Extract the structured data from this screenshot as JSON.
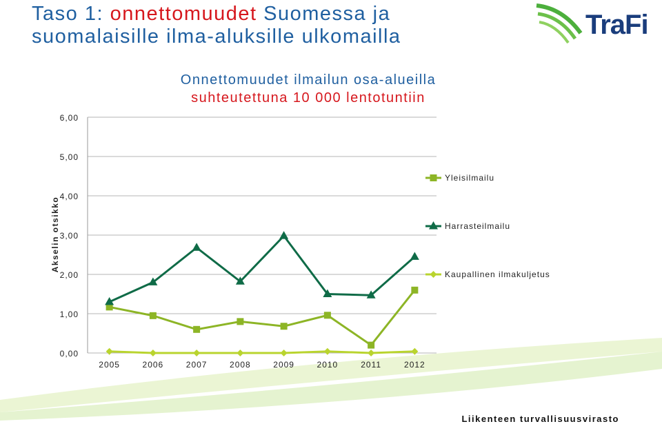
{
  "slide": {
    "title_prefix": "Taso 1: ",
    "title_accent": "onnettomuudet",
    "title_line1_rest": " Suomessa ja",
    "title_line2": "suomalaisille ilma-aluksille ulkomailla",
    "logo_text": "TraFi",
    "footer": "Liikenteen turvallisuusvirasto"
  },
  "colors": {
    "title": "#1f5fa0",
    "accent": "#d6171d",
    "yleisilmailu": "#8db526",
    "harrasteilmailu": "#0f6b47",
    "kaupallinen": "#b9d42e"
  },
  "chart_data": {
    "type": "line",
    "title": "Onnettomuudet ilmailun osa-alueilla",
    "subtitle": "suhteutettuna 10 000 lentotuntiin",
    "ylabel": "Akselin otsikko",
    "xlabel": "",
    "ylim": [
      0,
      6
    ],
    "yticks": [
      "0,00",
      "1,00",
      "2,00",
      "3,00",
      "4,00",
      "5,00",
      "6,00"
    ],
    "categories": [
      "2005",
      "2006",
      "2007",
      "2008",
      "2009",
      "2010",
      "2011",
      "2012"
    ],
    "legend_position": "right",
    "grid": true,
    "series": [
      {
        "name": "Yleisilmailu",
        "marker": "square",
        "values": [
          1.17,
          0.95,
          0.6,
          0.8,
          0.68,
          0.96,
          0.2,
          1.6
        ]
      },
      {
        "name": "Harrasteilmailu",
        "marker": "triangle",
        "values": [
          1.3,
          1.8,
          2.68,
          1.82,
          2.98,
          1.5,
          1.47,
          2.45
        ]
      },
      {
        "name": "Kaupallinen ilmakuljetus",
        "marker": "diamond",
        "values": [
          0.04,
          0.0,
          0.0,
          0.0,
          0.0,
          0.04,
          0.0,
          0.04
        ]
      }
    ]
  }
}
